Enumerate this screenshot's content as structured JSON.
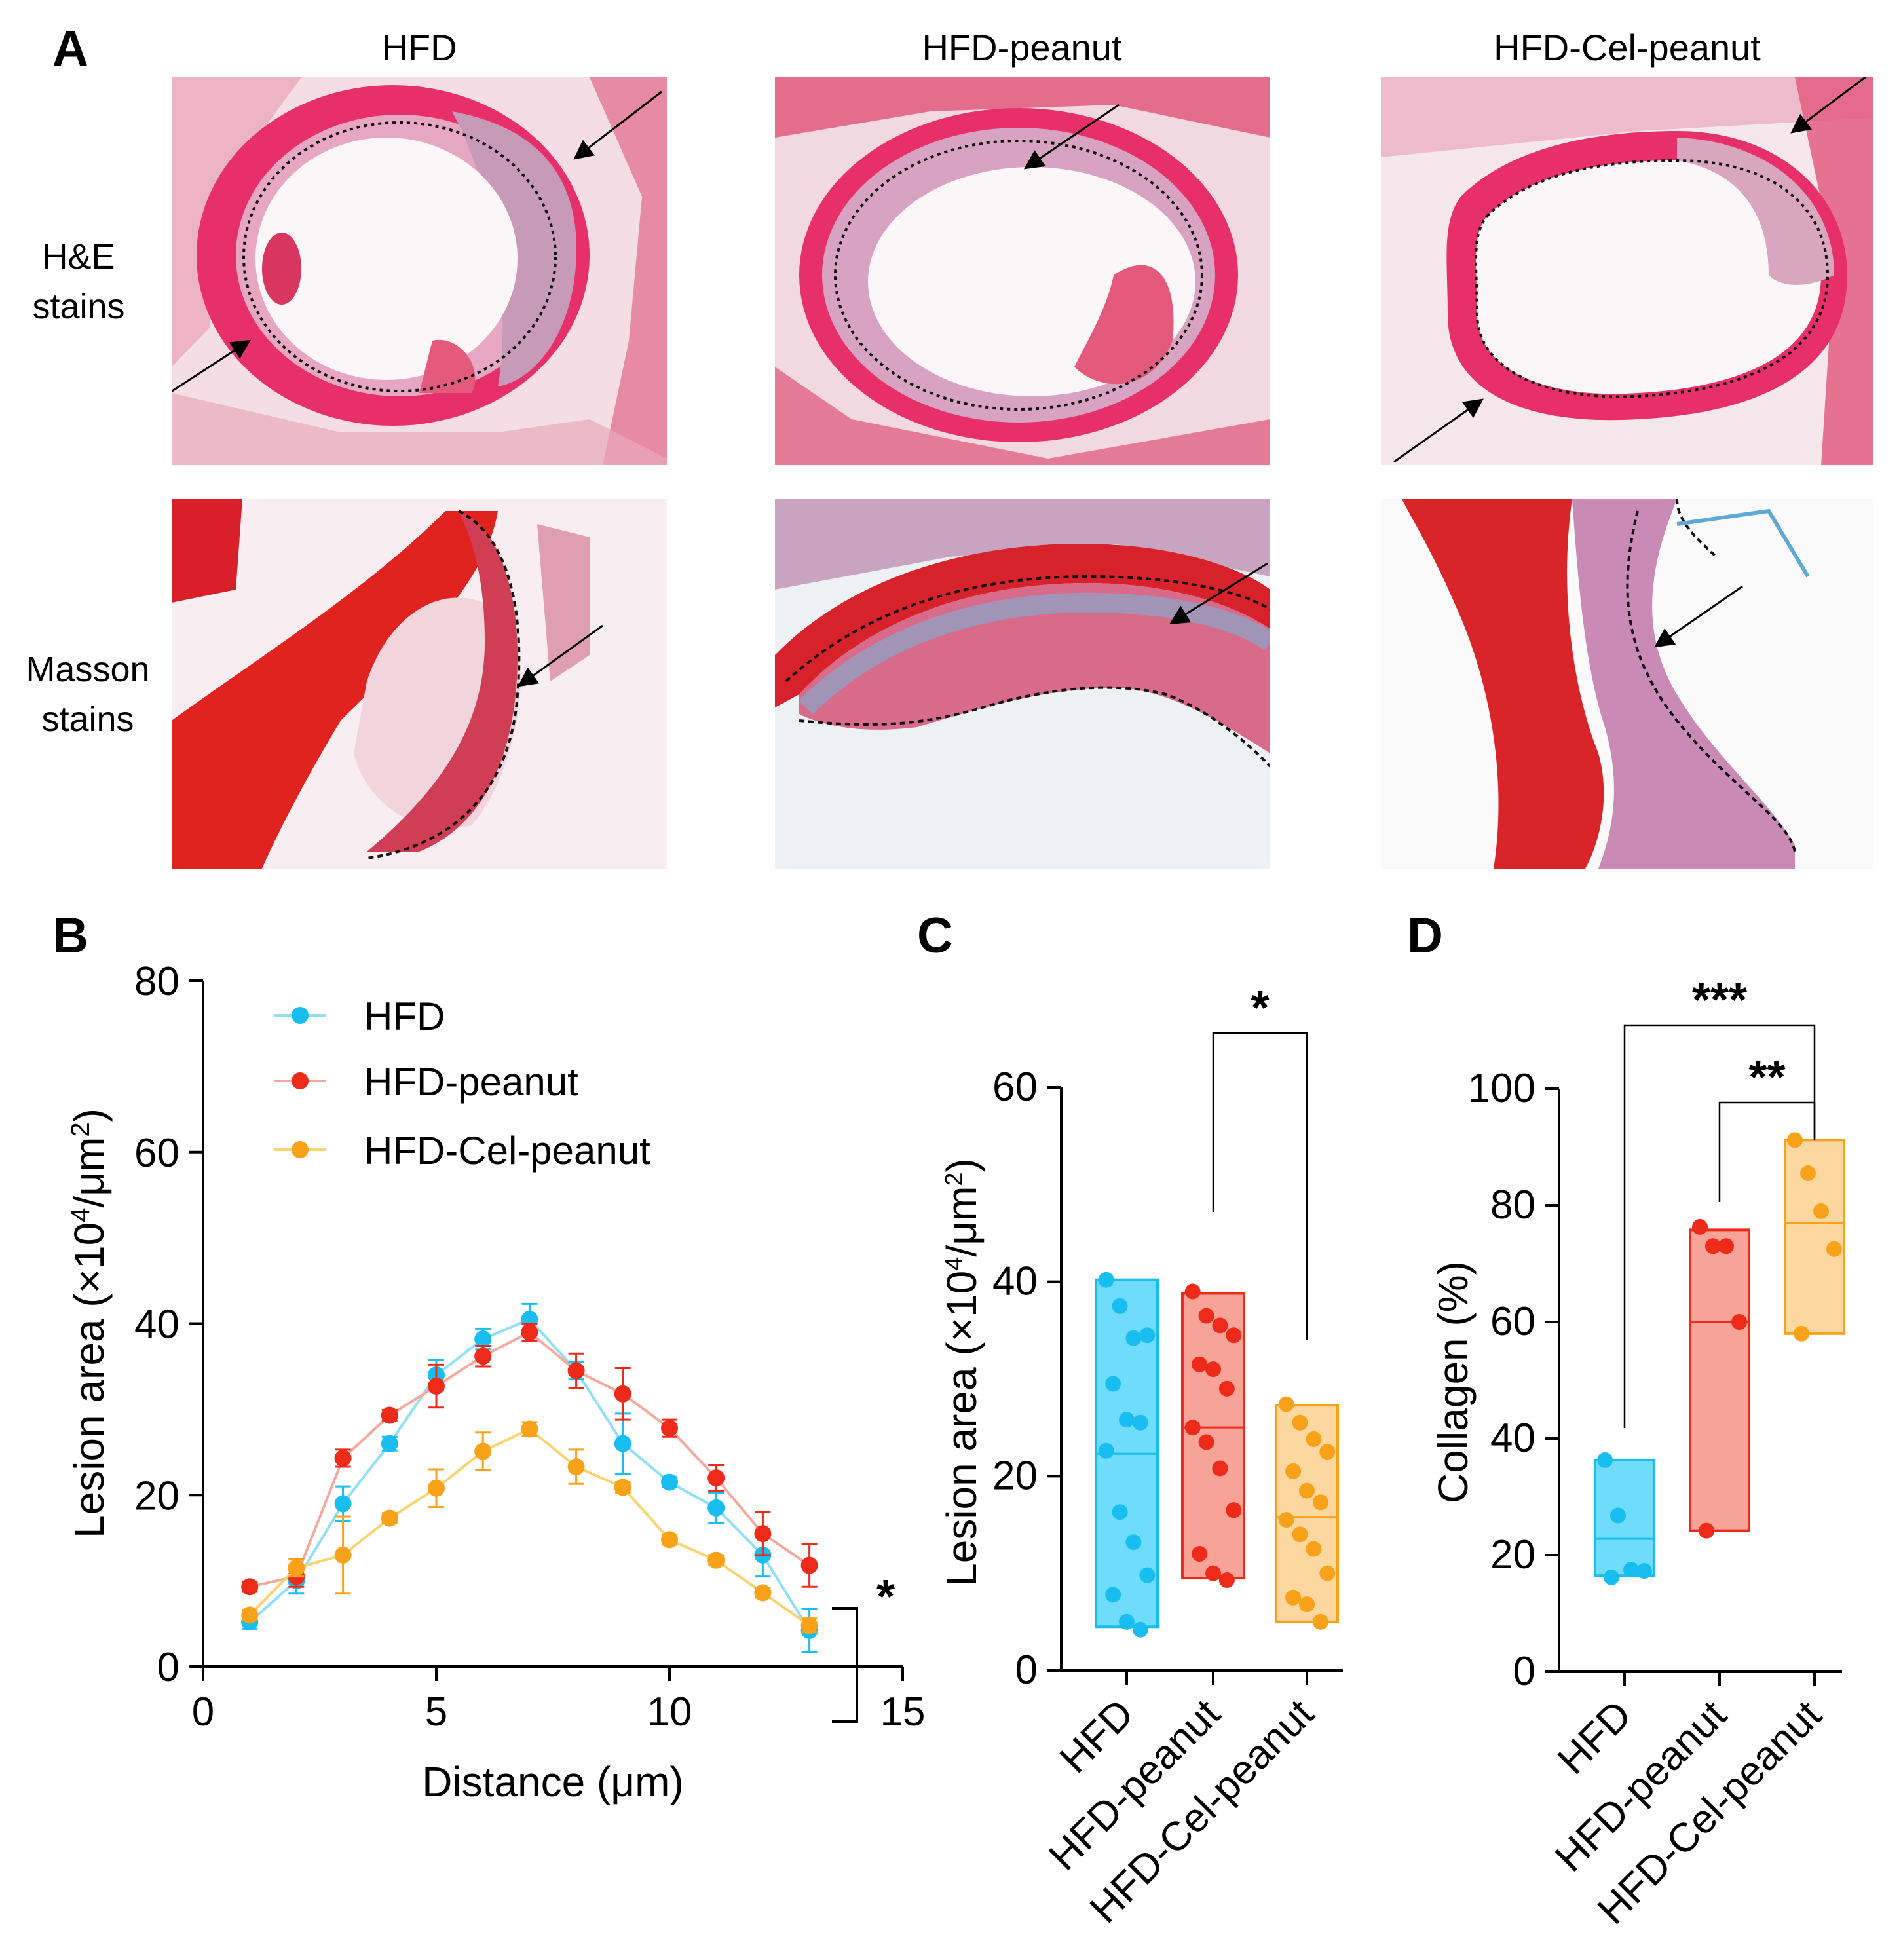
{
  "panels": {
    "a": {
      "letter": "A",
      "columns": [
        "HFD",
        "HFD-peanut",
        "HFD-Cel-peanut"
      ],
      "rows": [
        {
          "line1": "H&E",
          "line2": "stains"
        },
        {
          "line1": "Masson",
          "line2": "stains"
        }
      ]
    },
    "b": {
      "letter": "B"
    },
    "c": {
      "letter": "C"
    },
    "d": {
      "letter": "D"
    }
  },
  "colors": {
    "HFD": "#19BEF0",
    "HFD-peanut": "#EE2A1B",
    "HFD-Cel-peanut": "#F8A21A",
    "HFD_fill": "#6EDCFA",
    "HFD-peanut_fill": "#F7A398",
    "HFD-Cel-peanut_fill": "#FCD7A0",
    "HFD_line": "#8FE0F7",
    "HFD-peanut_line": "#F5A89C",
    "HFD-Cel-peanut_line": "#F9D36E"
  },
  "chart_data": [
    {
      "id": "B",
      "type": "line",
      "xlabel": "Distance (μm)",
      "ylabel_pre": "Lesion area (×10",
      "ylabel_sup": "4",
      "ylabel_post": "/μm",
      "ylabel_sup2": "2",
      "ylabel_end": ")",
      "xlim": [
        0,
        15
      ],
      "ylim": [
        0,
        80
      ],
      "xticks": [
        "0",
        "5",
        "10",
        "15"
      ],
      "yticks": [
        "0",
        "20",
        "40",
        "60",
        "80"
      ],
      "legend_position": "top-left",
      "x": [
        1,
        2,
        3,
        4,
        5,
        6,
        7,
        8,
        9,
        10,
        11,
        12,
        13
      ],
      "series": [
        {
          "name": "HFD",
          "values": [
            5.2,
            10,
            19,
            26,
            34,
            38.2,
            40.5,
            34.5,
            26,
            21.5,
            18.5,
            13,
            4.2
          ],
          "errors": [
            0.8,
            1.5,
            2,
            0.8,
            1.8,
            1.2,
            1.8,
            1,
            3.5,
            0.6,
            1.8,
            2.5,
            2.5
          ]
        },
        {
          "name": "HFD-peanut",
          "values": [
            9.3,
            10.5,
            24.3,
            29.3,
            32.7,
            36.2,
            39,
            34.5,
            31.8,
            27.8,
            22,
            15.5,
            11.8
          ],
          "errors": [
            0.6,
            1.2,
            1,
            0.6,
            2.5,
            1.2,
            1,
            2,
            3,
            1,
            1.5,
            2.5,
            2.5
          ]
        },
        {
          "name": "HFD-Cel-peanut",
          "values": [
            6,
            11.5,
            13,
            17.3,
            20.8,
            25.1,
            27.7,
            23.3,
            20.9,
            14.8,
            12.4,
            8.6,
            4.8
          ],
          "errors": [
            0.6,
            1,
            4.5,
            0.6,
            2.2,
            2.2,
            0.8,
            2,
            0.6,
            0.6,
            0.6,
            0.6,
            0.8
          ]
        }
      ],
      "annotation": "*"
    },
    {
      "id": "C",
      "type": "bar",
      "ylabel_pre": "Lesion area (×10",
      "ylabel_sup": "4",
      "ylabel_post": "/μm",
      "ylabel_sup2": "2",
      "ylabel_end": ")",
      "ylim": [
        0,
        60
      ],
      "yticks": [
        "0",
        "20",
        "40",
        "60"
      ],
      "categories": [
        "HFD",
        "HFD-peanut",
        "HFD-Cel-peanut"
      ],
      "boxes": [
        {
          "min": 4.5,
          "max": 40.2,
          "median": 22.3,
          "points": [
            40.2,
            37.5,
            34.2,
            34.5,
            29.5,
            25.8,
            25.5,
            22.6,
            16.3,
            13.2,
            9.8,
            7.8,
            5,
            4.2
          ]
        },
        {
          "min": 9.5,
          "max": 38.8,
          "median": 25,
          "points": [
            39,
            36.5,
            35.5,
            34.5,
            31.5,
            31,
            29,
            25,
            23.5,
            20.8,
            16.5,
            12,
            10,
            9.3
          ]
        },
        {
          "min": 5,
          "max": 27.3,
          "median": 15.8,
          "points": [
            27.4,
            25.5,
            23.8,
            22.5,
            20.5,
            18.5,
            17.3,
            15.5,
            14,
            12.5,
            10,
            7.5,
            6.8,
            5
          ]
        }
      ],
      "comparisons": [
        {
          "from": 1,
          "to": 2,
          "label": "*"
        }
      ]
    },
    {
      "id": "D",
      "type": "bar",
      "ylabel": "Collagen (%)",
      "ylim": [
        0,
        100
      ],
      "yticks": [
        "0",
        "20",
        "40",
        "60",
        "80",
        "100"
      ],
      "categories": [
        "HFD",
        "HFD-peanut",
        "HFD-Cel-peanut"
      ],
      "boxes": [
        {
          "min": 16.5,
          "max": 36.3,
          "median": 22.8,
          "points": [
            36.3,
            26.8,
            17.5,
            17.3,
            16.2
          ]
        },
        {
          "min": 24.2,
          "max": 75.8,
          "median": 60,
          "points": [
            76.3,
            73,
            73,
            60,
            24.2
          ]
        },
        {
          "min": 58,
          "max": 91.2,
          "median": 77,
          "points": [
            91.2,
            85.5,
            79,
            72.5,
            58
          ]
        }
      ],
      "comparisons": [
        {
          "from": 0,
          "to": 2,
          "label": "***"
        },
        {
          "from": 1,
          "to": 2,
          "label": "**"
        }
      ]
    }
  ]
}
